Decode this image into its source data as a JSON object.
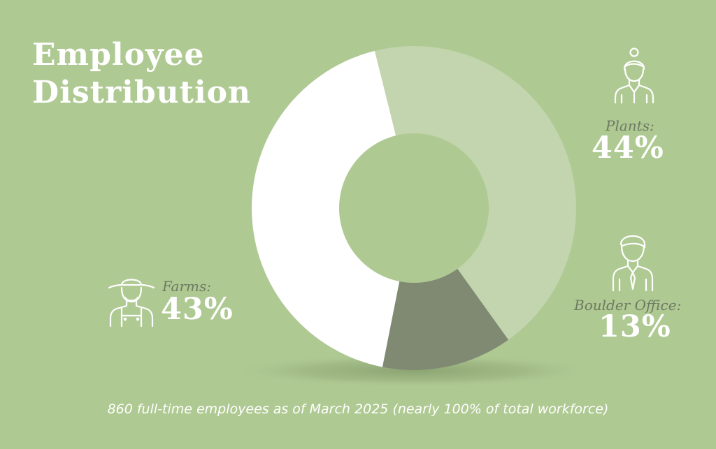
{
  "title": {
    "line1": "Employee",
    "line2": "Distribution"
  },
  "chart_data": {
    "type": "pie",
    "style": "donut",
    "series": [
      {
        "label": "Plants:",
        "value": 44,
        "value_label": "44%",
        "color": "#c2d5ae"
      },
      {
        "label": "Boulder Office:",
        "value": 13,
        "value_label": "13%",
        "color": "#808a73"
      },
      {
        "label": "Farms:",
        "value": 43,
        "value_label": "43%",
        "color": "#ffffff"
      }
    ],
    "start_angle_deg": -14,
    "center_color": "#afc993"
  },
  "icons": {
    "plants": "woman-worker-icon",
    "office": "office-man-icon",
    "farms": "farmer-hat-icon"
  },
  "footnote": "860 full-time employees as of March 2025 (nearly 100% of total workforce)"
}
